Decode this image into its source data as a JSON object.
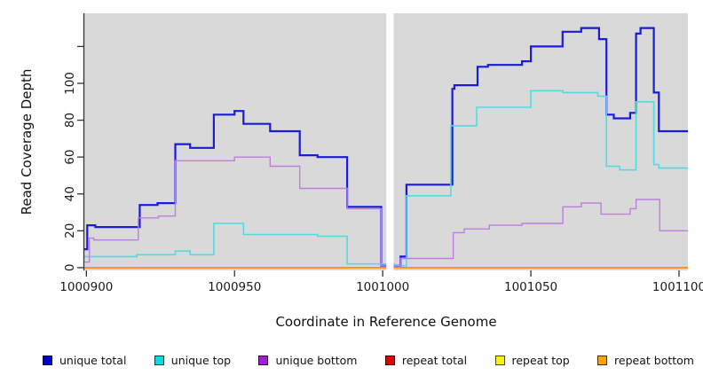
{
  "figure": {
    "background": "#ffffff",
    "panel_background": "#d9d9d9",
    "axis_color": "#333333",
    "tick_label_color": "#1a1a1a"
  },
  "chart_data": {
    "type": "line",
    "subtype": "step-coverage-plot",
    "title": "",
    "xlabel": "Coordinate in Reference Genome",
    "ylabel": "Read Coverage Depth",
    "x_domain": [
      1000899.3,
      1001103
    ],
    "y_domain": [
      -1.5,
      138
    ],
    "grid": false,
    "legend_position": "bottom",
    "x_ticks": [
      {
        "value": 1000900,
        "label": "1000900"
      },
      {
        "value": 1000950,
        "label": "1000950"
      },
      {
        "value": 1001000,
        "label": "1001000"
      },
      {
        "value": 1001050,
        "label": "1001050"
      },
      {
        "value": 1001100,
        "label": "1001100"
      }
    ],
    "y_ticks": [
      {
        "value": 0,
        "label": "0"
      },
      {
        "value": 20,
        "label": "20"
      },
      {
        "value": 40,
        "label": "40"
      },
      {
        "value": 60,
        "label": "60"
      },
      {
        "value": 80,
        "label": "80"
      },
      {
        "value": 100,
        "label": "100"
      },
      {
        "value": 120,
        "label": ""
      }
    ],
    "gap_region": {
      "x_start": 1001001.2,
      "x_end": 1001003.7,
      "color": "#ffffff"
    },
    "series": [
      {
        "name": "unique total",
        "line_color": "#1a1ad9",
        "legend_color": "#0000cc",
        "line_width": 2.2,
        "points": [
          [
            1000899.3,
            10
          ],
          [
            1000900.3,
            23
          ],
          [
            1000903,
            22
          ],
          [
            1000918,
            34
          ],
          [
            1000924,
            35
          ],
          [
            1000930,
            67
          ],
          [
            1000935,
            65
          ],
          [
            1000943,
            83
          ],
          [
            1000950,
            85
          ],
          [
            1000953,
            78
          ],
          [
            1000962,
            74
          ],
          [
            1000972,
            61
          ],
          [
            1000978,
            60
          ],
          [
            1000988,
            33
          ],
          [
            1000999.5,
            1
          ],
          [
            1001004,
            1
          ],
          [
            1001006,
            6
          ],
          [
            1001008,
            45
          ],
          [
            1001023.5,
            97
          ],
          [
            1001024.2,
            99
          ],
          [
            1001032,
            109
          ],
          [
            1001035.5,
            110
          ],
          [
            1001047,
            112
          ],
          [
            1001050,
            120
          ],
          [
            1001060.7,
            128
          ],
          [
            1001067,
            130
          ],
          [
            1001073,
            124
          ],
          [
            1001075.5,
            83
          ],
          [
            1001078,
            81
          ],
          [
            1001083.5,
            84
          ],
          [
            1001085.5,
            127
          ],
          [
            1001087,
            130
          ],
          [
            1001091.5,
            95
          ],
          [
            1001093.2,
            74
          ]
        ]
      },
      {
        "name": "unique top",
        "line_color": "#52d9e2",
        "legend_color": "#00dde4",
        "line_width": 1.6,
        "points": [
          [
            1000899.3,
            6
          ],
          [
            1000917,
            7
          ],
          [
            1000930,
            9
          ],
          [
            1000935,
            7
          ],
          [
            1000943,
            24
          ],
          [
            1000953,
            18
          ],
          [
            1000978,
            17
          ],
          [
            1000988,
            2
          ],
          [
            1001004,
            1
          ],
          [
            1001008,
            39
          ],
          [
            1001023,
            77
          ],
          [
            1001031.7,
            87
          ],
          [
            1001050,
            96
          ],
          [
            1001060.8,
            95
          ],
          [
            1001072.6,
            93
          ],
          [
            1001075.5,
            55
          ],
          [
            1001080,
            53
          ],
          [
            1001085.5,
            90
          ],
          [
            1001091.5,
            56
          ],
          [
            1001093.2,
            54
          ]
        ]
      },
      {
        "name": "unique bottom",
        "line_color": "#bd7fdc",
        "legend_color": "#a01fd0",
        "line_width": 1.4,
        "points": [
          [
            1000899.3,
            3
          ],
          [
            1000901,
            16
          ],
          [
            1000902.5,
            15
          ],
          [
            1000917.5,
            27
          ],
          [
            1000924.3,
            28
          ],
          [
            1000930,
            58
          ],
          [
            1000950,
            60
          ],
          [
            1000962,
            55
          ],
          [
            1000972,
            43
          ],
          [
            1000988,
            32
          ],
          [
            1000999.5,
            1
          ],
          [
            1001004,
            1
          ],
          [
            1001006,
            5
          ],
          [
            1001023.8,
            19
          ],
          [
            1001027.5,
            21
          ],
          [
            1001036,
            23
          ],
          [
            1001047,
            24
          ],
          [
            1001060.8,
            33
          ],
          [
            1001067,
            35
          ],
          [
            1001073.7,
            29
          ],
          [
            1001083.5,
            32
          ],
          [
            1001085.5,
            37
          ],
          [
            1001093.5,
            20
          ]
        ]
      },
      {
        "name": "repeat total",
        "line_color": "#dd0000",
        "legend_color": "#e00000",
        "line_width": 1.4,
        "points": [
          [
            1000899.3,
            0
          ]
        ]
      },
      {
        "name": "repeat top",
        "line_color": "#ffff33",
        "legend_color": "#fff200",
        "line_width": 1.4,
        "points": [
          [
            1000899.3,
            0
          ]
        ]
      },
      {
        "name": "repeat bottom",
        "line_color": "#ff9016",
        "legend_color": "#ffa010",
        "line_width": 1.7,
        "points": [
          [
            1000899.3,
            0
          ]
        ]
      }
    ]
  }
}
